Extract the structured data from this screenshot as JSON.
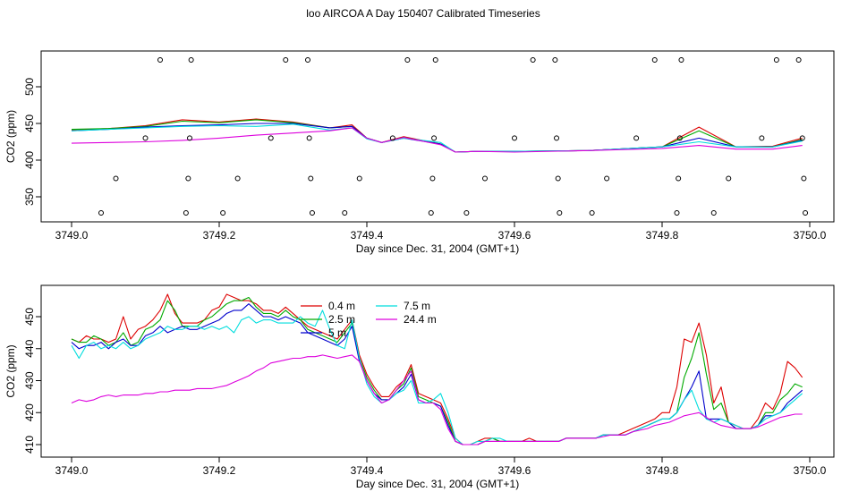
{
  "figure": {
    "title": "loo AIRCOA A  Day 150407  Calibrated Timeseries"
  },
  "colors": {
    "0.4 m": "#dd0000",
    "2.5 m": "#00aa00",
    "5 m": "#0000cc",
    "7.5 m": "#00dddd",
    "24.4 m": "#dd00dd",
    "axis": "#000000"
  },
  "chart_data": [
    {
      "type": "line",
      "title": "loo AIRCOA A  Day 150407  Calibrated Timeseries",
      "xlabel": "Day since Dec. 31, 2004 (GMT+1)",
      "ylabel": "CO2 (ppm)",
      "xlim": [
        3749.0,
        3750.0
      ],
      "ylim": [
        330,
        540
      ],
      "xticks": [
        "3749.0",
        "3749.2",
        "3749.4",
        "3749.6",
        "3749.8",
        "3750.0"
      ],
      "yticks": [
        "350",
        "400",
        "450",
        "500"
      ],
      "grid": false,
      "legend": "none",
      "x": [
        3749.0,
        3749.05,
        3749.1,
        3749.15,
        3749.2,
        3749.25,
        3749.3,
        3749.35,
        3749.38,
        3749.4,
        3749.42,
        3749.45,
        3749.5,
        3749.52,
        3749.55,
        3749.6,
        3749.7,
        3749.8,
        3749.85,
        3749.9,
        3749.95,
        3749.99
      ],
      "series": [
        {
          "name": "0.4 m",
          "values": [
            441,
            443,
            447,
            455,
            452,
            456,
            452,
            444,
            448,
            430,
            424,
            432,
            422,
            411,
            412,
            412,
            413,
            418,
            445,
            418,
            419,
            430
          ]
        },
        {
          "name": "2.5 m",
          "values": [
            442,
            443,
            446,
            453,
            451,
            455,
            451,
            444,
            446,
            430,
            424,
            431,
            422,
            411,
            412,
            412,
            413,
            418,
            440,
            418,
            418,
            428
          ]
        },
        {
          "name": "5 m",
          "values": [
            440,
            442,
            445,
            447,
            448,
            450,
            450,
            444,
            446,
            430,
            424,
            430,
            422,
            411,
            412,
            412,
            413,
            418,
            430,
            418,
            418,
            427
          ]
        },
        {
          "name": "7.5 m",
          "values": [
            440,
            442,
            444,
            446,
            447,
            446,
            449,
            441,
            444,
            429,
            424,
            430,
            424,
            411,
            412,
            412,
            413,
            418,
            425,
            418,
            418,
            426
          ]
        },
        {
          "name": "24.4 m",
          "values": [
            423,
            424,
            425,
            427,
            430,
            434,
            437,
            440,
            444,
            430,
            424,
            431,
            421,
            411,
            412,
            411,
            413,
            416,
            420,
            415,
            415,
            420
          ]
        }
      ],
      "calibration_markers": [
        {
          "x": 3749.04,
          "y": 330
        },
        {
          "x": 3749.06,
          "y": 375
        },
        {
          "x": 3749.1,
          "y": 430
        },
        {
          "x": 3749.12,
          "y": 536
        },
        {
          "x": 3749.155,
          "y": 330
        },
        {
          "x": 3749.158,
          "y": 375
        },
        {
          "x": 3749.16,
          "y": 430
        },
        {
          "x": 3749.162,
          "y": 536
        },
        {
          "x": 3749.205,
          "y": 330
        },
        {
          "x": 3749.225,
          "y": 375
        },
        {
          "x": 3749.27,
          "y": 430
        },
        {
          "x": 3749.29,
          "y": 536
        },
        {
          "x": 3749.32,
          "y": 536
        },
        {
          "x": 3749.322,
          "y": 430
        },
        {
          "x": 3749.324,
          "y": 375
        },
        {
          "x": 3749.326,
          "y": 330
        },
        {
          "x": 3749.37,
          "y": 330
        },
        {
          "x": 3749.39,
          "y": 375
        },
        {
          "x": 3749.435,
          "y": 430
        },
        {
          "x": 3749.455,
          "y": 536
        },
        {
          "x": 3749.487,
          "y": 330
        },
        {
          "x": 3749.489,
          "y": 375
        },
        {
          "x": 3749.491,
          "y": 430
        },
        {
          "x": 3749.493,
          "y": 536
        },
        {
          "x": 3749.535,
          "y": 330
        },
        {
          "x": 3749.56,
          "y": 375
        },
        {
          "x": 3749.6,
          "y": 430
        },
        {
          "x": 3749.625,
          "y": 536
        },
        {
          "x": 3749.655,
          "y": 536
        },
        {
          "x": 3749.657,
          "y": 430
        },
        {
          "x": 3749.659,
          "y": 375
        },
        {
          "x": 3749.661,
          "y": 330
        },
        {
          "x": 3749.705,
          "y": 330
        },
        {
          "x": 3749.725,
          "y": 375
        },
        {
          "x": 3749.765,
          "y": 430
        },
        {
          "x": 3749.79,
          "y": 536
        },
        {
          "x": 3749.82,
          "y": 330
        },
        {
          "x": 3749.822,
          "y": 375
        },
        {
          "x": 3749.824,
          "y": 430
        },
        {
          "x": 3749.826,
          "y": 536
        },
        {
          "x": 3749.87,
          "y": 330
        },
        {
          "x": 3749.89,
          "y": 375
        },
        {
          "x": 3749.935,
          "y": 430
        },
        {
          "x": 3749.955,
          "y": 536
        },
        {
          "x": 3749.985,
          "y": 536
        },
        {
          "x": 3749.99,
          "y": 430
        },
        {
          "x": 3749.992,
          "y": 375
        },
        {
          "x": 3749.994,
          "y": 330
        }
      ]
    },
    {
      "type": "line",
      "xlabel": "Day since Dec. 31, 2004 (GMT+1)",
      "ylabel": "CO2 (ppm)",
      "xlim": [
        3749.0,
        3750.0
      ],
      "ylim": [
        409,
        458
      ],
      "xticks": [
        "3749.0",
        "3749.2",
        "3749.4",
        "3749.6",
        "3749.8",
        "3750.0"
      ],
      "yticks": [
        "410",
        "420",
        "430",
        "440",
        "450"
      ],
      "grid": false,
      "legend": "top-center",
      "x": [
        3749.0,
        3749.01,
        3749.02,
        3749.03,
        3749.04,
        3749.05,
        3749.06,
        3749.07,
        3749.08,
        3749.09,
        3749.1,
        3749.11,
        3749.12,
        3749.13,
        3749.14,
        3749.15,
        3749.16,
        3749.17,
        3749.18,
        3749.19,
        3749.2,
        3749.21,
        3749.22,
        3749.23,
        3749.24,
        3749.25,
        3749.26,
        3749.27,
        3749.28,
        3749.29,
        3749.3,
        3749.31,
        3749.32,
        3749.33,
        3749.34,
        3749.35,
        3749.36,
        3749.37,
        3749.38,
        3749.39,
        3749.4,
        3749.41,
        3749.42,
        3749.43,
        3749.44,
        3749.45,
        3749.46,
        3749.47,
        3749.48,
        3749.49,
        3749.5,
        3749.51,
        3749.52,
        3749.53,
        3749.54,
        3749.55,
        3749.56,
        3749.57,
        3749.58,
        3749.59,
        3749.6,
        3749.61,
        3749.62,
        3749.63,
        3749.64,
        3749.65,
        3749.66,
        3749.67,
        3749.68,
        3749.69,
        3749.7,
        3749.71,
        3749.72,
        3749.73,
        3749.74,
        3749.75,
        3749.76,
        3749.77,
        3749.78,
        3749.79,
        3749.8,
        3749.81,
        3749.82,
        3749.83,
        3749.84,
        3749.85,
        3749.86,
        3749.87,
        3749.88,
        3749.89,
        3749.9,
        3749.91,
        3749.92,
        3749.93,
        3749.94,
        3749.95,
        3749.96,
        3749.97,
        3749.98,
        3749.99
      ],
      "series": [
        {
          "name": "0.4 m",
          "values": [
            443,
            442,
            444,
            443,
            443,
            442,
            443,
            450,
            443,
            446,
            447,
            449,
            452,
            457,
            451,
            448,
            448,
            448,
            449,
            452,
            453,
            457,
            456,
            455,
            455,
            454,
            452,
            452,
            451,
            453,
            451,
            449,
            447,
            446,
            445,
            444,
            443,
            446,
            449,
            438,
            432,
            428,
            425,
            425,
            428,
            430,
            435,
            426,
            425,
            424,
            423,
            418,
            412,
            410,
            410,
            411,
            412,
            412,
            411,
            411,
            411,
            411,
            412,
            411,
            411,
            411,
            411,
            412,
            412,
            412,
            412,
            412,
            413,
            413,
            413,
            414,
            415,
            416,
            417,
            418,
            420,
            420,
            428,
            443,
            442,
            448,
            438,
            423,
            428,
            417,
            416,
            415,
            415,
            418,
            423,
            421,
            426,
            436,
            434,
            431
          ]
        },
        {
          "name": "2.5 m",
          "values": [
            443,
            442,
            442,
            444,
            443,
            441,
            442,
            445,
            441,
            442,
            446,
            447,
            449,
            455,
            452,
            447,
            447,
            447,
            449,
            450,
            452,
            454,
            455,
            455,
            456,
            453,
            451,
            451,
            450,
            452,
            450,
            449,
            446,
            445,
            444,
            443,
            442,
            445,
            448,
            437,
            431,
            427,
            424,
            424,
            427,
            429,
            434,
            425,
            424,
            423,
            422,
            417,
            411,
            410,
            410,
            410,
            411,
            412,
            411,
            411,
            411,
            411,
            411,
            411,
            411,
            411,
            411,
            412,
            412,
            412,
            412,
            412,
            413,
            413,
            413,
            413,
            414,
            415,
            416,
            417,
            418,
            418,
            420,
            431,
            437,
            445,
            432,
            421,
            423,
            417,
            415,
            415,
            415,
            416,
            420,
            420,
            424,
            426,
            429,
            428
          ]
        },
        {
          "name": "5 m",
          "values": [
            442,
            440,
            441,
            441,
            442,
            440,
            442,
            443,
            441,
            441,
            444,
            445,
            447,
            445,
            446,
            447,
            446,
            446,
            447,
            448,
            449,
            451,
            452,
            452,
            454,
            452,
            450,
            450,
            449,
            450,
            449,
            448,
            445,
            444,
            443,
            442,
            441,
            443,
            447,
            436,
            430,
            426,
            424,
            424,
            426,
            428,
            432,
            424,
            423,
            423,
            422,
            416,
            411,
            410,
            410,
            410,
            411,
            411,
            411,
            411,
            411,
            411,
            411,
            411,
            411,
            411,
            411,
            412,
            412,
            412,
            412,
            412,
            413,
            413,
            413,
            413,
            414,
            415,
            416,
            417,
            418,
            418,
            420,
            424,
            428,
            433,
            418,
            418,
            418,
            417,
            415,
            415,
            415,
            416,
            419,
            419,
            420,
            423,
            425,
            427
          ]
        },
        {
          "name": "7.5 m",
          "values": [
            441,
            437,
            441,
            442,
            440,
            441,
            440,
            442,
            440,
            441,
            443,
            444,
            445,
            447,
            446,
            446,
            447,
            447,
            446,
            447,
            446,
            447,
            445,
            449,
            450,
            448,
            449,
            449,
            448,
            448,
            448,
            450,
            448,
            447,
            452,
            446,
            441,
            440,
            449,
            437,
            429,
            425,
            423,
            424,
            426,
            427,
            430,
            423,
            423,
            424,
            426,
            420,
            412,
            410,
            410,
            411,
            411,
            412,
            412,
            411,
            411,
            411,
            411,
            411,
            411,
            411,
            411,
            412,
            412,
            412,
            412,
            412,
            413,
            413,
            413,
            413,
            414,
            415,
            416,
            417,
            418,
            418,
            420,
            424,
            427,
            421,
            418,
            417,
            418,
            417,
            416,
            415,
            415,
            416,
            418,
            419,
            420,
            422,
            424,
            426
          ]
        },
        {
          "name": "24.4 m",
          "values": [
            423,
            424,
            423.5,
            424,
            425,
            425.5,
            425,
            425.5,
            425.5,
            425.5,
            426,
            426,
            426.5,
            426.5,
            427,
            427,
            427,
            427.5,
            427.5,
            427.5,
            428,
            428.5,
            429.5,
            430.5,
            431.5,
            433,
            434,
            435.5,
            436,
            436.5,
            437,
            437,
            437.5,
            437.5,
            438,
            437.5,
            437,
            437.5,
            438,
            436,
            430,
            426,
            423,
            424,
            427,
            430,
            433,
            424,
            423,
            423,
            421,
            415,
            411,
            410,
            410,
            410,
            411,
            411,
            411,
            411,
            411,
            411,
            411,
            411,
            411,
            411,
            411,
            412,
            412,
            412,
            412,
            412,
            412.5,
            413,
            413,
            413,
            414,
            414.5,
            415,
            416,
            416.5,
            417,
            418,
            419,
            419.5,
            420,
            418.5,
            417,
            416,
            415.5,
            415,
            415,
            415,
            415.5,
            416.5,
            417.5,
            418.5,
            419,
            419.5,
            419.5
          ]
        }
      ]
    }
  ]
}
